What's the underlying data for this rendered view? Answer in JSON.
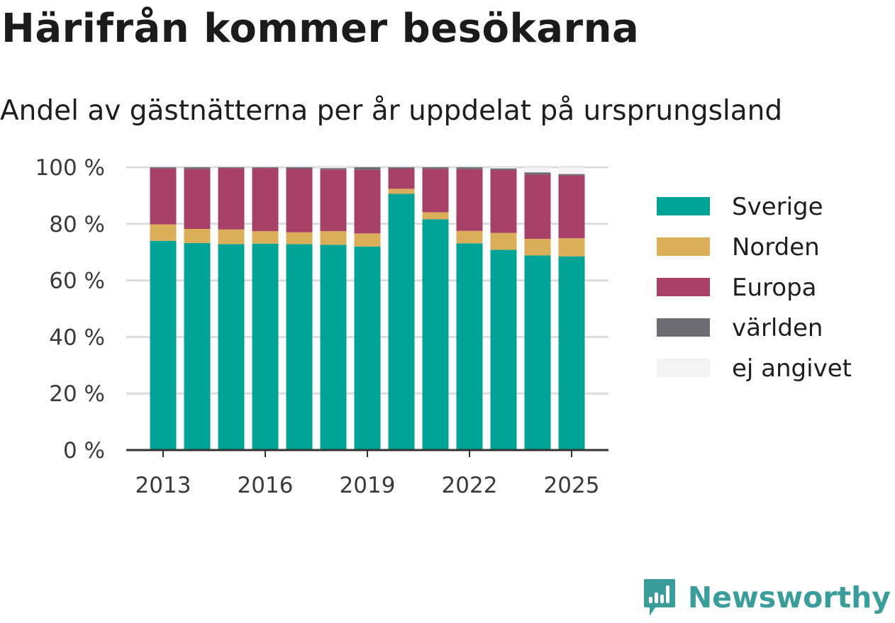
{
  "title": "Härifrån kommer besökarna",
  "subtitle": "Andel av gästnätterna per år uppdelat på ursprungsland",
  "brand": {
    "name": "Newsworthy",
    "icon": "newsworthy-logo-icon",
    "color": "#3b9d9a"
  },
  "chart_data": {
    "type": "bar",
    "stacked": true,
    "categories": [
      "2013",
      "2014",
      "2015",
      "2016",
      "2017",
      "2018",
      "2019",
      "2020",
      "2021",
      "2022",
      "2023",
      "2024",
      "2025"
    ],
    "x_tick_labels": [
      "2013",
      "2016",
      "2019",
      "2022",
      "2025"
    ],
    "y_tick_labels": [
      "0 %",
      "20 %",
      "40 %",
      "60 %",
      "80 %",
      "100 %"
    ],
    "ylim": [
      0,
      100
    ],
    "grid": true,
    "legend_position": "right",
    "series": [
      {
        "name": "Sverige",
        "color": "#00a497",
        "values": [
          74.0,
          73.2,
          72.8,
          73.0,
          72.8,
          72.6,
          72.0,
          90.6,
          81.6,
          73.1,
          70.8,
          68.8,
          68.5
        ]
      },
      {
        "name": "Norden",
        "color": "#dbaf5a",
        "values": [
          5.8,
          5.0,
          5.2,
          4.4,
          4.2,
          4.8,
          4.6,
          1.8,
          2.5,
          4.4,
          6.0,
          5.9,
          6.4
        ]
      },
      {
        "name": "Europa",
        "color": "#a84066",
        "values": [
          19.8,
          21.2,
          21.7,
          22.3,
          22.5,
          21.8,
          22.5,
          7.1,
          15.3,
          21.8,
          22.2,
          22.7,
          22.2
        ]
      },
      {
        "name": "världen",
        "color": "#6c6c72",
        "values": [
          0.4,
          0.6,
          0.3,
          0.3,
          0.5,
          0.5,
          0.9,
          0.5,
          0.6,
          0.7,
          0.6,
          0.8,
          0.5
        ]
      },
      {
        "name": "ej angivet",
        "color": "#f3f3f3",
        "values": [
          0.0,
          0.0,
          0.0,
          0.0,
          0.0,
          0.3,
          0.0,
          0.0,
          0.0,
          0.0,
          0.4,
          1.8,
          2.4
        ]
      }
    ]
  }
}
